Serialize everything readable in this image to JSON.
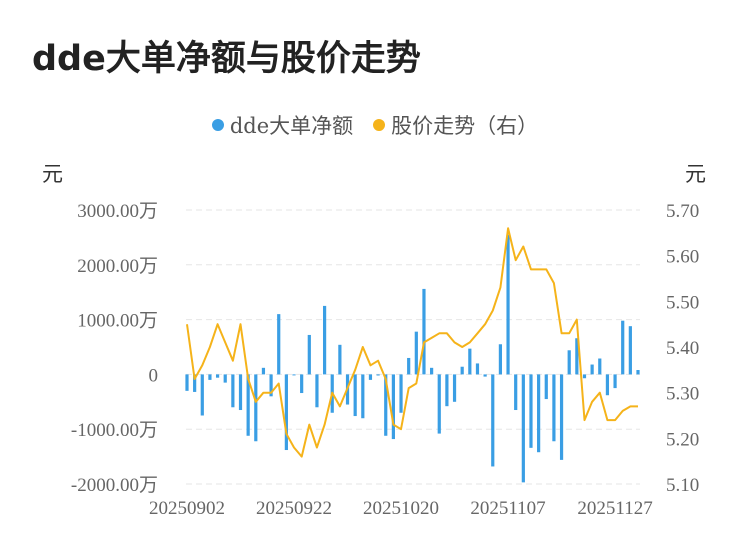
{
  "title": "dde大单净额与股价走势",
  "legend": [
    {
      "label": "dde大单净额",
      "color": "#3a9ee4"
    },
    {
      "label": "股价走势（右）",
      "color": "#f5b31a"
    }
  ],
  "units": {
    "left": "元",
    "right": "元"
  },
  "chart_data": {
    "type": "bar+line",
    "left_axis": {
      "ticks": [
        3000,
        2000,
        1000,
        0,
        -1000,
        -2000
      ],
      "tick_labels": [
        "3000.00万",
        "2000.00万",
        "1000.00万",
        "0",
        "-1000.00万",
        "-2000.00万"
      ],
      "ylim": [
        -2000,
        3000
      ]
    },
    "right_axis": {
      "ticks": [
        5.7,
        5.6,
        5.5,
        5.4,
        5.3,
        5.2,
        5.1
      ],
      "tick_labels": [
        "5.70",
        "5.60",
        "5.50",
        "5.40",
        "5.30",
        "5.20",
        "5.10"
      ],
      "ylim": [
        5.1,
        5.7
      ]
    },
    "x_tick_labels": [
      {
        "label": "20250902",
        "index": 0
      },
      {
        "label": "20250922",
        "index": 14
      },
      {
        "label": "20251020",
        "index": 28
      },
      {
        "label": "20251107",
        "index": 42
      },
      {
        "label": "20251127",
        "index": 56
      }
    ],
    "grid": true,
    "series": [
      {
        "name": "dde大单净额",
        "type": "bar",
        "values": [
          -300,
          -320,
          -750,
          -100,
          -60,
          -150,
          -600,
          -650,
          -1120,
          -1220,
          120,
          -400,
          1100,
          -1380,
          0,
          -340,
          720,
          -600,
          1250,
          -700,
          540,
          -550,
          -760,
          -800,
          -100,
          -20,
          -1120,
          -1180,
          -700,
          300,
          780,
          1560,
          120,
          -1080,
          -580,
          -500,
          140,
          470,
          200,
          -40,
          -1680,
          550,
          2550,
          -650,
          -1970,
          -1340,
          -1420,
          -450,
          -1220,
          -1560,
          440,
          660,
          -70,
          180,
          290,
          -380,
          -250,
          980,
          880,
          80
        ],
        "unit": "万元"
      },
      {
        "name": "股价走势（右）",
        "type": "line",
        "values": [
          5.45,
          5.33,
          5.36,
          5.4,
          5.45,
          5.41,
          5.37,
          5.45,
          5.33,
          5.28,
          5.3,
          5.3,
          5.32,
          5.21,
          5.18,
          5.16,
          5.23,
          5.18,
          5.23,
          5.3,
          5.27,
          5.31,
          5.35,
          5.4,
          5.36,
          5.37,
          5.33,
          5.23,
          5.22,
          5.31,
          5.32,
          5.41,
          5.42,
          5.43,
          5.43,
          5.41,
          5.4,
          5.41,
          5.43,
          5.45,
          5.48,
          5.53,
          5.66,
          5.59,
          5.62,
          5.57,
          5.57,
          5.57,
          5.54,
          5.43,
          5.43,
          5.46,
          5.24,
          5.28,
          5.3,
          5.24,
          5.24,
          5.26,
          5.27,
          5.27
        ],
        "axis": "right"
      }
    ]
  }
}
